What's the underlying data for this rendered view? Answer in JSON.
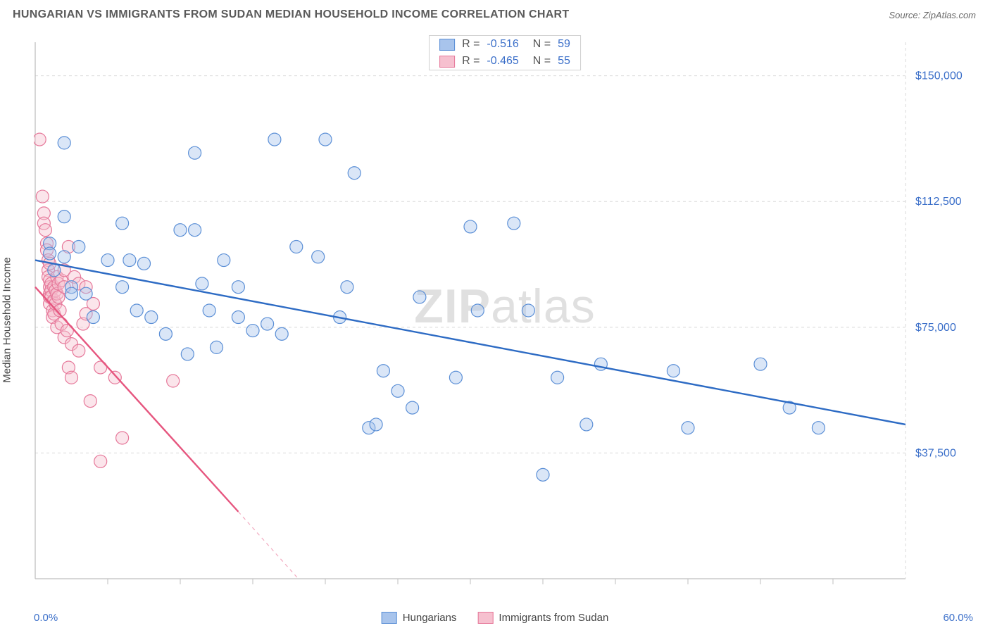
{
  "title": "HUNGARIAN VS IMMIGRANTS FROM SUDAN MEDIAN HOUSEHOLD INCOME CORRELATION CHART",
  "source": "Source: ZipAtlas.com",
  "ylabel": "Median Household Income",
  "watermark_prefix": "ZIP",
  "watermark_suffix": "atlas",
  "chart": {
    "type": "scatter-with-regression",
    "xlim": [
      0,
      60
    ],
    "ylim": [
      0,
      160000
    ],
    "x_format": "percent",
    "y_format": "currency",
    "x_ticks_minor": [
      5,
      10,
      15,
      20,
      25,
      30,
      35,
      40,
      45,
      50,
      55
    ],
    "y_ticks": [
      37500,
      75000,
      112500,
      150000
    ],
    "y_tick_labels": [
      "$37,500",
      "$75,000",
      "$112,500",
      "$150,000"
    ],
    "xmin_label": "0.0%",
    "xmax_label": "60.0%",
    "grid_color": "#d9d9d9",
    "grid_dash": "4 4",
    "axis_color": "#bfbfbf",
    "background": "#ffffff",
    "tick_label_color": "#3b6fc9",
    "marker_radius": 9,
    "marker_opacity": 0.42,
    "marker_stroke_width": 1.2,
    "regression_line_width": 2.4,
    "series": {
      "hungarians": {
        "label": "Hungarians",
        "fill": "#a8c4ec",
        "stroke": "#5b8fd6",
        "line_color": "#2d6bc4",
        "R": "-0.516",
        "N": "59",
        "regression": {
          "x1": 0,
          "y1": 95000,
          "x2": 60,
          "y2": 46000
        },
        "points": [
          [
            1,
            100000
          ],
          [
            1,
            97000
          ],
          [
            1.3,
            92000
          ],
          [
            2,
            130000
          ],
          [
            2,
            108000
          ],
          [
            2,
            96000
          ],
          [
            2.5,
            87000
          ],
          [
            2.5,
            85000
          ],
          [
            3,
            99000
          ],
          [
            3.5,
            85000
          ],
          [
            4,
            78000
          ],
          [
            5,
            95000
          ],
          [
            6,
            106000
          ],
          [
            6,
            87000
          ],
          [
            6.5,
            95000
          ],
          [
            7,
            80000
          ],
          [
            7.5,
            94000
          ],
          [
            8,
            78000
          ],
          [
            9,
            73000
          ],
          [
            10,
            104000
          ],
          [
            10.5,
            67000
          ],
          [
            11,
            127000
          ],
          [
            11,
            104000
          ],
          [
            11.5,
            88000
          ],
          [
            12,
            80000
          ],
          [
            12.5,
            69000
          ],
          [
            13,
            95000
          ],
          [
            14,
            87000
          ],
          [
            14,
            78000
          ],
          [
            15,
            74000
          ],
          [
            16,
            76000
          ],
          [
            16.5,
            131000
          ],
          [
            17,
            73000
          ],
          [
            18,
            99000
          ],
          [
            19.5,
            96000
          ],
          [
            20,
            131000
          ],
          [
            21,
            78000
          ],
          [
            21.5,
            87000
          ],
          [
            22,
            121000
          ],
          [
            23,
            45000
          ],
          [
            23.5,
            46000
          ],
          [
            24,
            62000
          ],
          [
            25,
            56000
          ],
          [
            26,
            51000
          ],
          [
            26.5,
            84000
          ],
          [
            29,
            60000
          ],
          [
            30,
            105000
          ],
          [
            30.5,
            80000
          ],
          [
            33,
            106000
          ],
          [
            34,
            80000
          ],
          [
            35,
            31000
          ],
          [
            36,
            60000
          ],
          [
            38,
            46000
          ],
          [
            39,
            64000
          ],
          [
            44,
            62000
          ],
          [
            45,
            45000
          ],
          [
            50,
            64000
          ],
          [
            52,
            51000
          ],
          [
            54,
            45000
          ]
        ]
      },
      "sudan": {
        "label": "Immigrants from Sudan",
        "fill": "#f6c0cf",
        "stroke": "#e6789a",
        "line_color": "#e6567f",
        "R": "-0.465",
        "N": "55",
        "regression": {
          "x1": 0,
          "y1": 87000,
          "x2": 14,
          "y2": 20000
        },
        "regression_dash_extend": {
          "x1": 14,
          "y1": 20000,
          "x2": 20,
          "y2": -9000
        },
        "points": [
          [
            0.3,
            131000
          ],
          [
            0.5,
            114000
          ],
          [
            0.6,
            109000
          ],
          [
            0.6,
            106000
          ],
          [
            0.7,
            104000
          ],
          [
            0.8,
            100000
          ],
          [
            0.8,
            98000
          ],
          [
            0.9,
            95000
          ],
          [
            0.9,
            92000
          ],
          [
            0.9,
            90000
          ],
          [
            1,
            94000
          ],
          [
            1,
            89000
          ],
          [
            1,
            87000
          ],
          [
            1,
            85000
          ],
          [
            1,
            84000
          ],
          [
            1,
            82000
          ],
          [
            1.1,
            88000
          ],
          [
            1.1,
            86000
          ],
          [
            1.1,
            84000
          ],
          [
            1.2,
            80000
          ],
          [
            1.2,
            78000
          ],
          [
            1.3,
            87000
          ],
          [
            1.3,
            83000
          ],
          [
            1.3,
            79000
          ],
          [
            1.4,
            86000
          ],
          [
            1.4,
            82000
          ],
          [
            1.5,
            90000
          ],
          [
            1.5,
            85000
          ],
          [
            1.5,
            75000
          ],
          [
            1.6,
            88000
          ],
          [
            1.6,
            84000
          ],
          [
            1.7,
            80000
          ],
          [
            1.8,
            89000
          ],
          [
            1.8,
            76000
          ],
          [
            2,
            92000
          ],
          [
            2,
            87000
          ],
          [
            2,
            72000
          ],
          [
            2.2,
            74000
          ],
          [
            2.3,
            99000
          ],
          [
            2.3,
            63000
          ],
          [
            2.5,
            70000
          ],
          [
            2.5,
            60000
          ],
          [
            2.7,
            90000
          ],
          [
            3,
            88000
          ],
          [
            3,
            68000
          ],
          [
            3.3,
            76000
          ],
          [
            3.5,
            79000
          ],
          [
            3.5,
            87000
          ],
          [
            3.8,
            53000
          ],
          [
            4,
            82000
          ],
          [
            4.5,
            63000
          ],
          [
            4.5,
            35000
          ],
          [
            5.5,
            60000
          ],
          [
            6,
            42000
          ],
          [
            9.5,
            59000
          ]
        ]
      }
    }
  },
  "stats_legend": {
    "r_label": "R  =",
    "n_label": "N  ="
  }
}
